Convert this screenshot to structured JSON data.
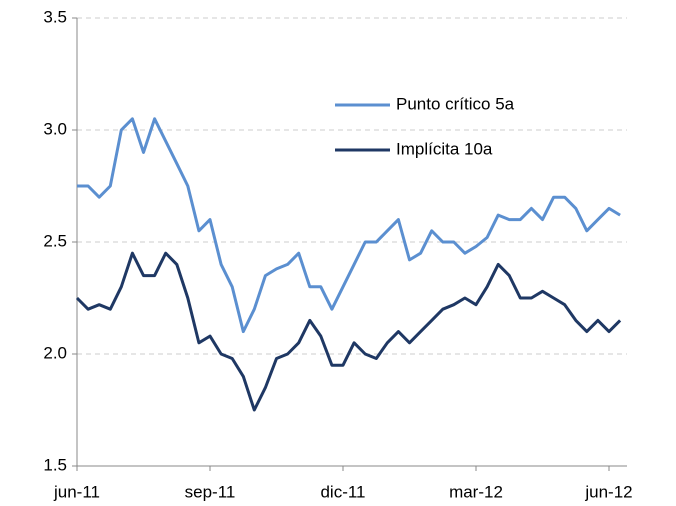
{
  "chart_data": {
    "type": "line",
    "categories": [
      "jun-11",
      null,
      null,
      null,
      null,
      null,
      null,
      null,
      null,
      null,
      null,
      null,
      "sep-11",
      null,
      null,
      null,
      null,
      null,
      null,
      null,
      null,
      null,
      null,
      null,
      "dic-11",
      null,
      null,
      null,
      null,
      null,
      null,
      null,
      null,
      null,
      null,
      null,
      "mar-12",
      null,
      null,
      null,
      null,
      null,
      null,
      null,
      null,
      null,
      null,
      null,
      "jun-12",
      null
    ],
    "series": [
      {
        "name": "Punto crítico 5a",
        "color": "#5b8fd0",
        "values": [
          2.75,
          2.75,
          2.7,
          2.75,
          3.0,
          3.05,
          2.9,
          3.05,
          2.95,
          2.85,
          2.75,
          2.55,
          2.6,
          2.4,
          2.3,
          2.1,
          2.2,
          2.35,
          2.38,
          2.4,
          2.45,
          2.3,
          2.3,
          2.2,
          2.3,
          2.4,
          2.5,
          2.5,
          2.55,
          2.6,
          2.42,
          2.45,
          2.55,
          2.5,
          2.5,
          2.45,
          2.48,
          2.52,
          2.62,
          2.6,
          2.6,
          2.65,
          2.6,
          2.7,
          2.7,
          2.65,
          2.55,
          2.6,
          2.65,
          2.62
        ]
      },
      {
        "name": "Implícita 10a",
        "color": "#1f3864",
        "values": [
          2.25,
          2.2,
          2.22,
          2.2,
          2.3,
          2.45,
          2.35,
          2.35,
          2.45,
          2.4,
          2.25,
          2.05,
          2.08,
          2.0,
          1.98,
          1.9,
          1.75,
          1.85,
          1.98,
          2.0,
          2.05,
          2.15,
          2.08,
          1.95,
          1.95,
          2.05,
          2.0,
          1.98,
          2.05,
          2.1,
          2.05,
          2.1,
          2.15,
          2.2,
          2.22,
          2.25,
          2.22,
          2.3,
          2.4,
          2.35,
          2.25,
          2.25,
          2.28,
          2.25,
          2.22,
          2.15,
          2.1,
          2.15,
          2.1,
          2.15
        ]
      }
    ],
    "ylim": [
      1.5,
      3.5
    ],
    "yticks": [
      1.5,
      {
        "value": 2,
        "label": "2.0"
      },
      2.5,
      {
        "value": 3,
        "label": "3.0"
      },
      3.5
    ],
    "grid": true,
    "legend": "upper right"
  }
}
